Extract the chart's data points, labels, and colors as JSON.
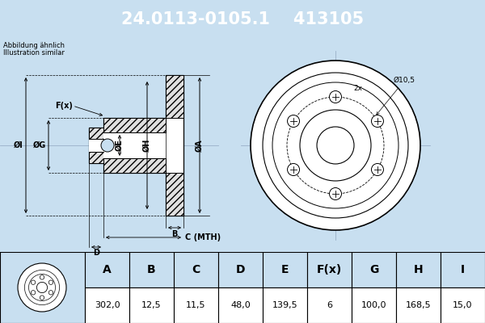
{
  "title_part_number": "24.0113-0105.1",
  "title_ref_number": "413105",
  "title_bg_color": "#1565c0",
  "title_text_color": "#ffffff",
  "note_line1": "Abbildung ähnlich",
  "note_line2": "Illustration similar",
  "table_headers": [
    "A",
    "B",
    "C",
    "D",
    "E",
    "F(x)",
    "G",
    "H",
    "I"
  ],
  "table_values": [
    "302,0",
    "12,5",
    "11,5",
    "48,0",
    "139,5",
    "6",
    "100,0",
    "168,5",
    "15,0"
  ],
  "dim_note": "Ø10,5",
  "dim_2x": "2x",
  "bg_color": "#c8dff0",
  "table_bg": "#ffffff",
  "table_header_bg": "#c8dff0",
  "line_color": "#000000",
  "crosshair_color": "#9ab0c8"
}
